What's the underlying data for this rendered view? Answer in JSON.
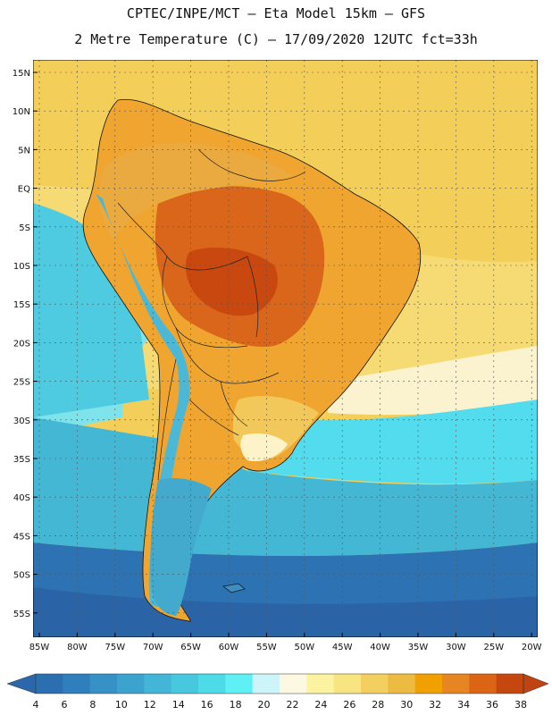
{
  "header": {
    "line1": "CPTEC/INPE/MCT –  Eta Model 15km – GFS",
    "line2": "2 Metre Temperature (C) – 17/09/2020 12UTC fct=33h"
  },
  "map": {
    "region": "South America",
    "lat_labels": [
      "15N",
      "10N",
      "5N",
      "EQ",
      "5S",
      "10S",
      "15S",
      "20S",
      "25S",
      "30S",
      "35S",
      "40S",
      "45S",
      "50S",
      "55S"
    ],
    "lon_labels": [
      "85W",
      "80W",
      "75W",
      "70W",
      "65W",
      "60W",
      "55W",
      "50W",
      "45W",
      "40W",
      "35W",
      "30W",
      "25W",
      "20W"
    ]
  },
  "colorbar": {
    "labels": [
      "4",
      "6",
      "8",
      "10",
      "12",
      "14",
      "16",
      "18",
      "20",
      "22",
      "24",
      "26",
      "28",
      "30",
      "32",
      "34",
      "36",
      "38"
    ],
    "colors": [
      "#2c6fb0",
      "#2f7fbd",
      "#3591c6",
      "#3ca3cf",
      "#43b6d8",
      "#48c8df",
      "#4ddbe8",
      "#5ff0f5",
      "#cdf4f8",
      "#fdf8e1",
      "#fbf3a0",
      "#f8e480",
      "#f2cf5e",
      "#edba42",
      "#f0a000",
      "#e68522",
      "#db6415",
      "#c5460f"
    ],
    "low_color": "#2b67aa",
    "high_color": "#bf4412"
  }
}
